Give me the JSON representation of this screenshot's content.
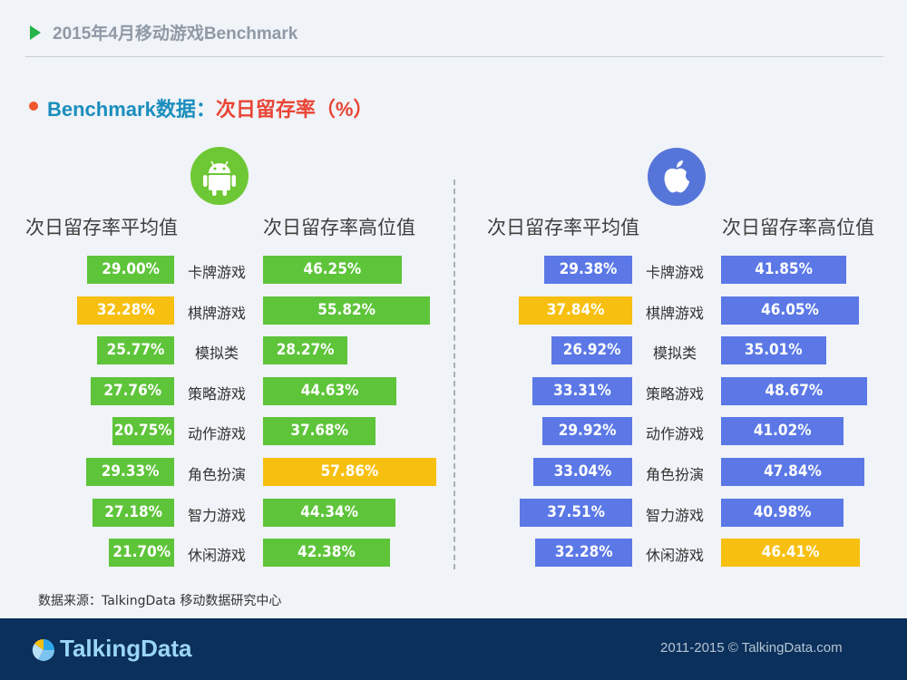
{
  "header": {
    "title": "2015年4月移动游戏Benchmark"
  },
  "subtitle": {
    "prefix": "Benchmark数据：",
    "metric": "次日留存率（%）"
  },
  "source": "数据来源：TalkingData 移动数据研究中心",
  "footer": {
    "brand": "TalkingData",
    "copyright": "2011-2015 © TalkingData.com"
  },
  "colors": {
    "android": "#5ec43a",
    "ios": "#5b78e6",
    "highlight": "#f7bf10",
    "page_bg": "#f0f3f7",
    "footer_bg": "#0b305b"
  },
  "icons": {
    "android": "android-icon",
    "ios": "apple-icon"
  },
  "chart_data": {
    "type": "bar",
    "categories": [
      "卡牌游戏",
      "棋牌游戏",
      "模拟类",
      "策略游戏",
      "动作游戏",
      "角色扮演",
      "智力游戏",
      "休闲游戏"
    ],
    "panels": [
      {
        "platform_icon": "android-icon",
        "series": [
          {
            "name": "次日留存率平均值",
            "values": [
              29.0,
              32.28,
              25.77,
              27.76,
              20.75,
              29.33,
              27.18,
              21.7
            ],
            "labels": [
              "29.00%",
              "32.28%",
              "25.77%",
              "27.76%",
              "20.75%",
              "29.33%",
              "27.18%",
              "21.70%"
            ],
            "highlight_index": 1
          },
          {
            "name": "次日留存率高位值",
            "values": [
              46.25,
              55.82,
              28.27,
              44.63,
              37.68,
              57.86,
              44.34,
              42.38
            ],
            "labels": [
              "46.25%",
              "55.82%",
              "28.27%",
              "44.63%",
              "37.68%",
              "57.86%",
              "44.34%",
              "42.38%"
            ],
            "highlight_index": 5
          }
        ]
      },
      {
        "platform_icon": "apple-icon",
        "series": [
          {
            "name": "次日留存率平均值",
            "values": [
              29.38,
              37.84,
              26.92,
              33.31,
              29.92,
              33.04,
              37.51,
              32.28
            ],
            "labels": [
              "29.38%",
              "37.84%",
              "26.92%",
              "33.31%",
              "29.92%",
              "33.04%",
              "37.51%",
              "32.28%"
            ],
            "highlight_index": 1
          },
          {
            "name": "次日留存率高位值",
            "values": [
              41.85,
              46.05,
              35.01,
              48.67,
              41.02,
              47.84,
              40.98,
              46.41
            ],
            "labels": [
              "41.85%",
              "46.05%",
              "35.01%",
              "48.67%",
              "41.02%",
              "47.84%",
              "40.98%",
              "46.41%"
            ],
            "highlight_index": 7
          }
        ]
      }
    ]
  }
}
